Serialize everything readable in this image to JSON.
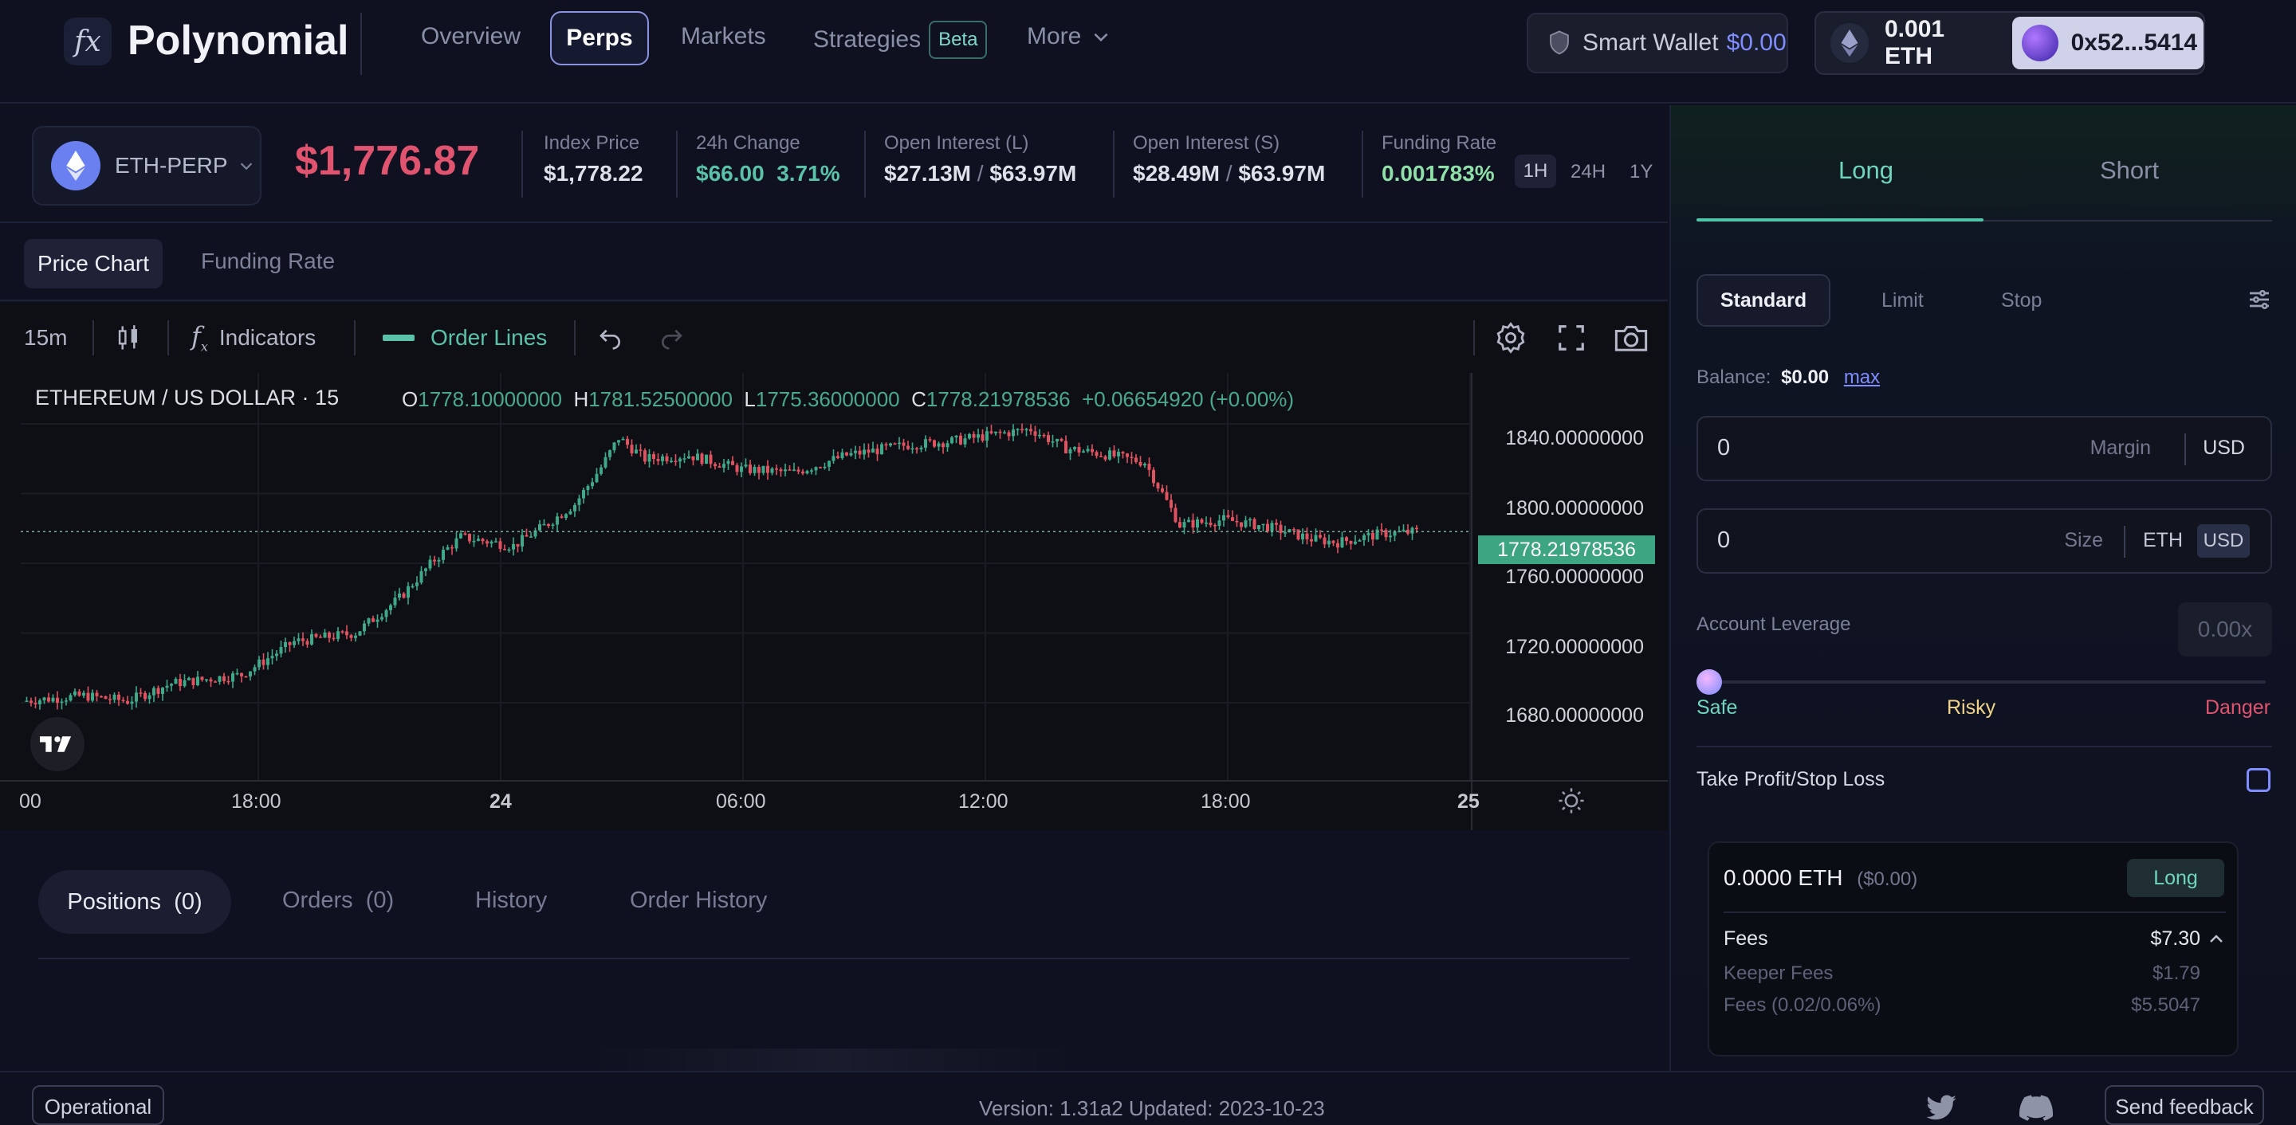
{
  "brand": {
    "name": "Polynomial",
    "logo_glyph": "fx"
  },
  "nav": {
    "items": [
      "Overview",
      "Perps",
      "Markets",
      "Strategies"
    ],
    "active": "Perps",
    "beta_badge": "Beta",
    "more": "More"
  },
  "smart_wallet": {
    "label": "Smart Wallet",
    "value": "$0.00"
  },
  "wallet": {
    "balance": "0.001 ETH",
    "address": "0x52...5414"
  },
  "market": {
    "symbol": "ETH-PERP",
    "price": "$1,776.87",
    "index_price": {
      "label": "Index Price",
      "value": "$1,778.22"
    },
    "change_24h": {
      "label": "24h Change",
      "value": "$66.00",
      "pct": "3.71%"
    },
    "oi_long": {
      "label": "Open Interest (L)",
      "value": "$27.13M",
      "sep": "/",
      "cap": "$63.97M"
    },
    "oi_short": {
      "label": "Open Interest (S)",
      "value": "$28.49M",
      "sep": "/",
      "cap": "$63.97M"
    },
    "funding": {
      "label": "Funding Rate",
      "value": "0.001783%",
      "periods": [
        "1H",
        "24H",
        "1Y"
      ],
      "active_period": "1H"
    }
  },
  "chart_tabs": {
    "active": "Price Chart",
    "other": "Funding Rate"
  },
  "chart_toolbar": {
    "interval": "15m",
    "indicators": "Indicators",
    "order_lines": "Order Lines"
  },
  "chart": {
    "title": "ETHEREUM / US DOLLAR · 15",
    "ohlc": {
      "o_label": "O",
      "o": "1778.10000000",
      "h_label": "H",
      "h": "1781.52500000",
      "l_label": "L",
      "l": "1775.36000000",
      "c_label": "C",
      "c": "1778.21978536",
      "change": "+0.06654920 (+0.00%)"
    },
    "y_ticks": [
      "1840.00000000",
      "1800.00000000",
      "1760.00000000",
      "1720.00000000",
      "1680.00000000"
    ],
    "x_ticks": [
      "00",
      "18:00",
      "24",
      "06:00",
      "12:00",
      "18:00",
      "25"
    ],
    "current_price_tag": "1778.21978536",
    "up_color": "#3fa889",
    "down_color": "#e0525f"
  },
  "positions_tabs": {
    "positions": "Positions",
    "positions_count": "(0)",
    "orders": "Orders",
    "orders_count": "(0)",
    "history": "History",
    "order_history": "Order History"
  },
  "trade": {
    "long": "Long",
    "short": "Short",
    "order_types": [
      "Standard",
      "Limit",
      "Stop"
    ],
    "balance_label": "Balance:",
    "balance_value": "$0.00",
    "max": "max",
    "margin_value": "0",
    "margin_label": "Margin",
    "margin_unit": "USD",
    "size_value": "0",
    "size_label": "Size",
    "size_units": [
      "ETH",
      "USD"
    ],
    "leverage_label": "Account Leverage",
    "leverage_value": "0.00x",
    "leverage_fraction": 0,
    "risk_labels": {
      "safe": "Safe",
      "risky": "Risky",
      "danger": "Danger"
    },
    "tpsl_label": "Take Profit/Stop Loss",
    "summary": {
      "amount": "0.0000 ETH",
      "amount_usd": "($0.00)",
      "side_badge": "Long",
      "fees_label": "Fees",
      "fees_value": "$7.30",
      "keeper_label": "Keeper Fees",
      "keeper_value": "$1.79",
      "fee_rate_label": "Fees (0.02/0.06%)",
      "fee_rate_value": "$5.5047"
    }
  },
  "footer": {
    "status": "Operational",
    "version": "Version: 1.31a2 Updated: 2023-10-23",
    "feedback": "Send feedback"
  }
}
